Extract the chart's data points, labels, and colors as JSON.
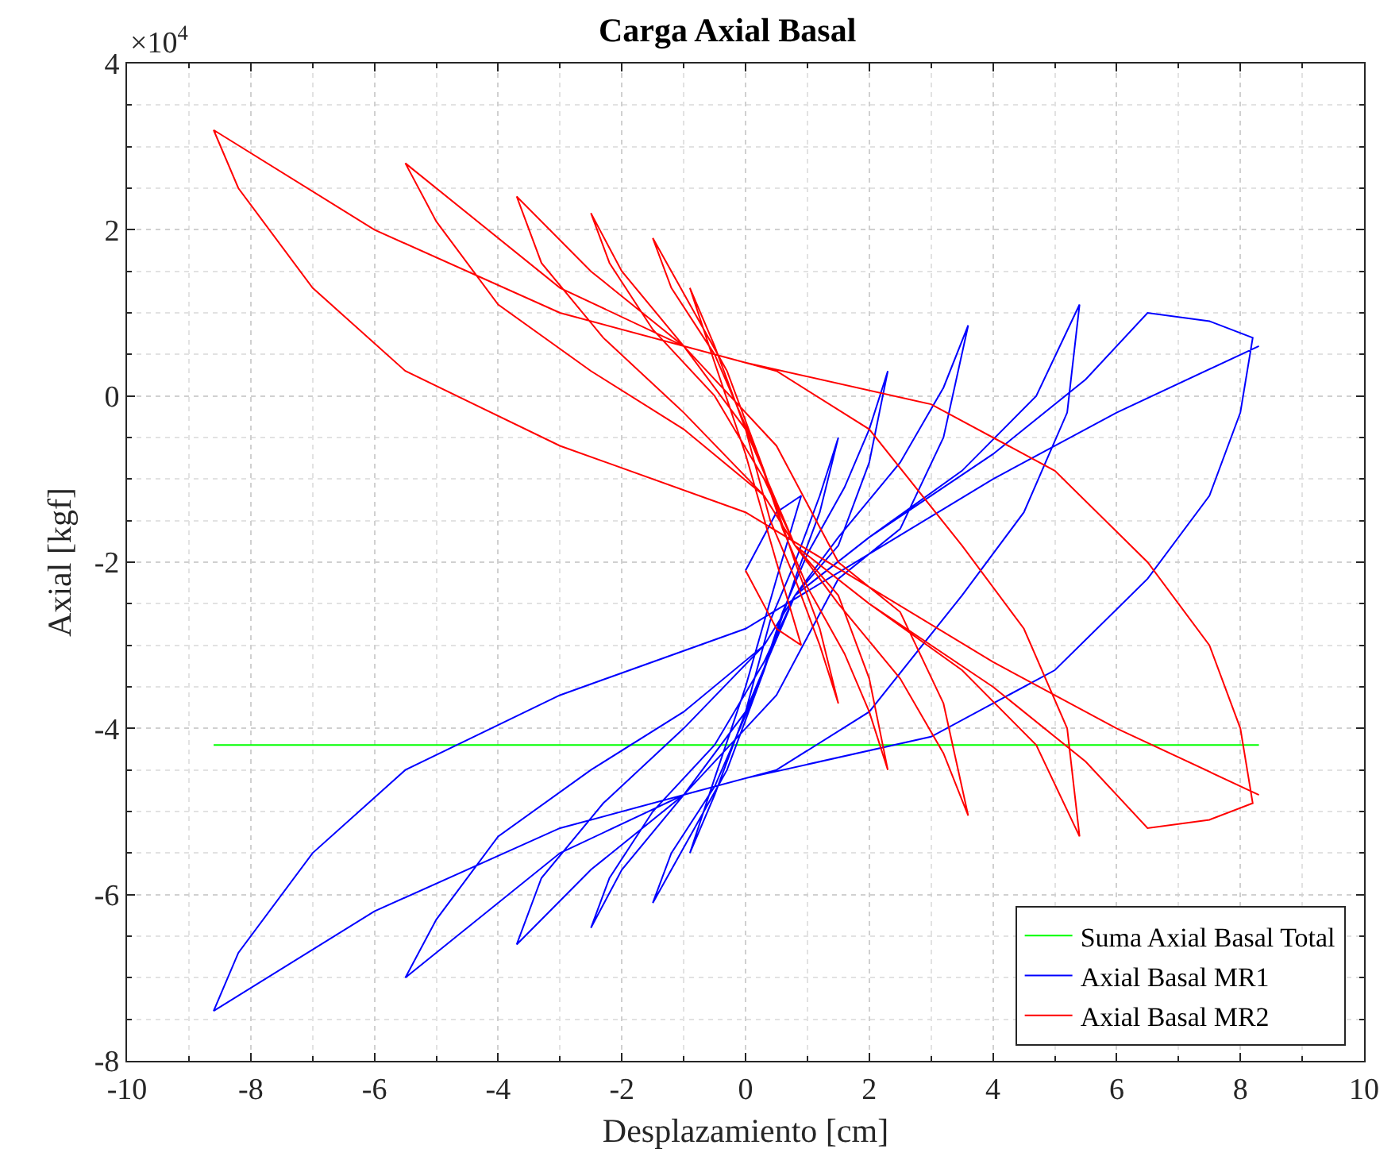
{
  "chart_data": {
    "type": "line",
    "title": "Carga Axial Basal",
    "xlabel": "Desplazamiento [cm]",
    "ylabel": "Axial [kgf]",
    "annotations": [
      "×10$^{4}$"
    ],
    "xlim": [
      -10,
      10
    ],
    "xticks": [
      -10,
      -8,
      -6,
      -4,
      -2,
      0,
      2,
      4,
      6,
      8,
      10
    ],
    "ylim": [
      -8,
      4
    ],
    "yticks": [
      -8,
      -6,
      -4,
      -2,
      0,
      2,
      4
    ],
    "grid": true,
    "legend": "bottom right",
    "marker": "none",
    "line_style": "solid",
    "series": [
      {
        "name": "Suma Axial Basal Total",
        "color": "#00ff00",
        "x": [
          -8.6,
          8.3
        ],
        "values": [
          -4.2,
          -4.2
        ]
      },
      {
        "name": "Axial Basal MR1",
        "color": "#0000ff",
        "x": [
          0,
          0.5,
          0.9,
          0.5,
          0,
          -0.5,
          -0.9,
          -0.5,
          0,
          0.4,
          0.8,
          1.2,
          1.5,
          1.2,
          0.8,
          0.3,
          -0.3,
          -0.9,
          -1.5,
          -1.2,
          -0.5,
          0.2,
          0.6,
          1,
          1.6,
          2.0,
          2.3,
          2.0,
          1.5,
          0.8,
          0,
          -1,
          -2,
          -2.5,
          -2.2,
          -1.5,
          -0.5,
          0.3,
          0.8,
          1.5,
          2.5,
          3.2,
          3.6,
          3.2,
          2.5,
          1.5,
          0.5,
          -1,
          -2.5,
          -3.7,
          -3.3,
          -2.3,
          -1,
          0.3,
          0.8,
          2,
          3.5,
          4.7,
          5.4,
          5.2,
          4.5,
          3.5,
          2,
          0.5,
          -1,
          -3,
          -5.5,
          -5,
          -4,
          -2.5,
          -1,
          0.3,
          0.8,
          2,
          4,
          5.5,
          6.5,
          7.5,
          8.2,
          8.0,
          7.5,
          6.5,
          5,
          3,
          0,
          -3,
          -6,
          -8.6,
          -8.2,
          -7,
          -5.5,
          -3,
          0,
          2,
          4,
          6,
          8.3
        ],
        "values": [
          -2.1,
          -1.4,
          -1.2,
          -2.2,
          -3.5,
          -4.6,
          -5.5,
          -4.8,
          -3.8,
          -2.7,
          -2.0,
          -1.2,
          -0.5,
          -1.4,
          -2.2,
          -3.3,
          -4.5,
          -5.3,
          -6.1,
          -5.5,
          -4.7,
          -3.5,
          -2.6,
          -1.9,
          -1.1,
          -0.4,
          0.3,
          -0.8,
          -1.8,
          -2.4,
          -3.8,
          -4.8,
          -5.7,
          -6.4,
          -5.8,
          -5.0,
          -4.2,
          -3.2,
          -2.4,
          -1.7,
          -0.8,
          0.1,
          0.85,
          -0.5,
          -1.6,
          -2.2,
          -3.6,
          -4.8,
          -5.7,
          -6.6,
          -5.8,
          -4.9,
          -4.0,
          -3.0,
          -2.4,
          -1.7,
          -0.9,
          0,
          1.1,
          -0.2,
          -1.4,
          -2.4,
          -3.8,
          -4.5,
          -4.8,
          -5.5,
          -7.0,
          -6.3,
          -5.3,
          -4.5,
          -3.8,
          -3.0,
          -2.4,
          -1.7,
          -0.7,
          0.2,
          1.0,
          0.9,
          0.7,
          -0.2,
          -1.2,
          -2.2,
          -3.3,
          -4.1,
          -4.6,
          -5.2,
          -6.2,
          -7.4,
          -6.7,
          -5.5,
          -4.5,
          -3.6,
          -2.8,
          -1.9,
          -1.0,
          -0.2,
          0.6
        ]
      },
      {
        "name": "Axial Basal MR2",
        "color": "#ff0000",
        "x": [
          0,
          0.5,
          0.9,
          0.5,
          0,
          -0.5,
          -0.9,
          -0.5,
          0,
          0.4,
          0.8,
          1.2,
          1.5,
          1.2,
          0.8,
          0.3,
          -0.3,
          -0.9,
          -1.5,
          -1.2,
          -0.5,
          0.2,
          0.6,
          1,
          1.6,
          2.0,
          2.3,
          2.0,
          1.5,
          0.8,
          0,
          -1,
          -2,
          -2.5,
          -2.2,
          -1.5,
          -0.5,
          0.3,
          0.8,
          1.5,
          2.5,
          3.2,
          3.6,
          3.2,
          2.5,
          1.5,
          0.5,
          -1,
          -2.5,
          -3.7,
          -3.3,
          -2.3,
          -1,
          0.3,
          0.8,
          2,
          3.5,
          4.7,
          5.4,
          5.2,
          4.5,
          3.5,
          2,
          0.5,
          -1,
          -3,
          -5.5,
          -5,
          -4,
          -2.5,
          -1,
          0.3,
          0.8,
          2,
          4,
          5.5,
          6.5,
          7.5,
          8.2,
          8.0,
          7.5,
          6.5,
          5,
          3,
          0,
          -3,
          -6,
          -8.6,
          -8.2,
          -7,
          -5.5,
          -3,
          0,
          2,
          4,
          6,
          8.3
        ],
        "values": [
          -2.1,
          -2.8,
          -3.0,
          -2.0,
          -0.7,
          0.4,
          1.3,
          0.6,
          -0.4,
          -1.5,
          -2.2,
          -3.0,
          -3.7,
          -2.8,
          -2.0,
          -0.9,
          0.3,
          1.1,
          1.9,
          1.3,
          0.5,
          -0.7,
          -1.6,
          -2.3,
          -3.1,
          -3.8,
          -4.5,
          -3.4,
          -2.4,
          -1.8,
          -0.4,
          0.6,
          1.5,
          2.2,
          1.6,
          0.8,
          0,
          -1.0,
          -1.8,
          -2.5,
          -3.4,
          -4.3,
          -5.05,
          -3.7,
          -2.6,
          -2.0,
          -0.6,
          0.6,
          1.5,
          2.4,
          1.6,
          0.7,
          -0.2,
          -1.2,
          -1.8,
          -2.5,
          -3.3,
          -4.2,
          -5.3,
          -4.0,
          -2.8,
          -1.8,
          -0.4,
          0.3,
          0.6,
          1.3,
          2.8,
          2.1,
          1.1,
          0.3,
          -0.4,
          -1.2,
          -1.8,
          -2.5,
          -3.5,
          -4.4,
          -5.2,
          -5.1,
          -4.9,
          -4.0,
          -3.0,
          -2.0,
          -0.9,
          -0.1,
          0.4,
          1.0,
          2.0,
          3.2,
          2.5,
          1.3,
          0.3,
          -0.6,
          -1.4,
          -2.3,
          -3.2,
          -4.0,
          -4.8
        ]
      }
    ]
  }
}
